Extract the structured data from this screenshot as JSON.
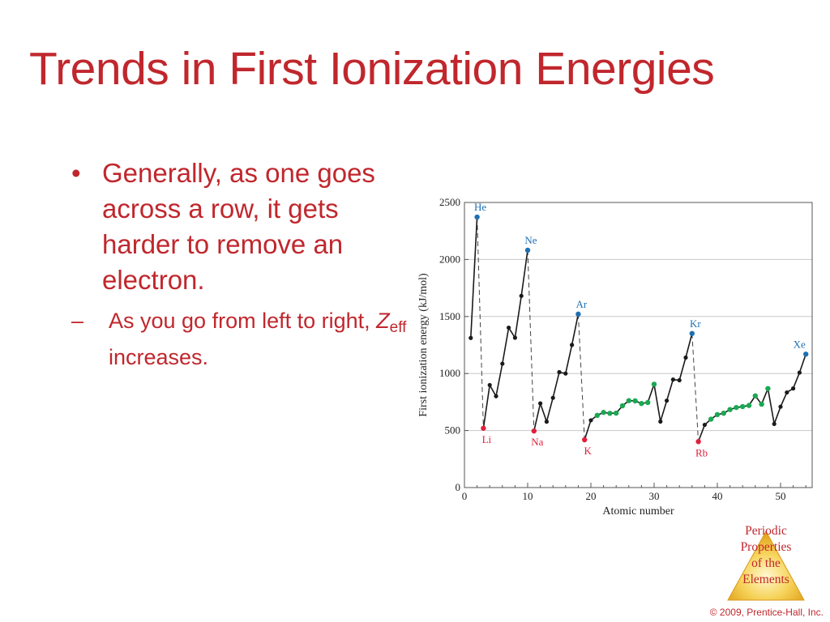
{
  "slide": {
    "title": "Trends in First Ionization Energies",
    "bullet1": "Generally, as one goes across a row, it gets harder to remove an electron.",
    "sub_bullet_prefix": "As you go from left to right, ",
    "sub_bullet_z": "Z",
    "sub_bullet_subscript": "eff",
    "sub_bullet_suffix": " increases.",
    "bullet_marker": "•",
    "sub_marker": "–"
  },
  "chart_data": {
    "type": "line",
    "xlabel": "Atomic number",
    "ylabel": "First ionization energy (kJ/mol)",
    "xlim": [
      0,
      55
    ],
    "ylim": [
      0,
      2500
    ],
    "xticks": [
      0,
      10,
      20,
      30,
      40,
      50
    ],
    "yticks": [
      0,
      500,
      1000,
      1500,
      2000,
      2500
    ],
    "grid": true,
    "series": [
      {
        "x": [
          1,
          2,
          3,
          4,
          5,
          6,
          7,
          8,
          9,
          10,
          11,
          12,
          13,
          14,
          15,
          16,
          17,
          18,
          19,
          20,
          21,
          22,
          23,
          24,
          25,
          26,
          27,
          28,
          29,
          30,
          31,
          32,
          33,
          34,
          35,
          36,
          37,
          38,
          39,
          40,
          41,
          42,
          43,
          44,
          45,
          46,
          47,
          48,
          49,
          50,
          51,
          52,
          53,
          54
        ],
        "values": [
          1312,
          2372,
          520,
          899,
          801,
          1086,
          1402,
          1314,
          1681,
          2081,
          496,
          738,
          578,
          787,
          1012,
          1000,
          1251,
          1521,
          419,
          590,
          633,
          659,
          651,
          653,
          717,
          762,
          760,
          737,
          746,
          906,
          579,
          762,
          947,
          941,
          1140,
          1351,
          403,
          550,
          600,
          640,
          652,
          684,
          702,
          710,
          720,
          804,
          731,
          868,
          558,
          709,
          834,
          869,
          1008,
          1170
        ]
      }
    ],
    "point_colors": {
      "alkali": "#e0203c",
      "noble": "#1f6fb2",
      "transition": "#1aa853",
      "other": "#1a1a1a"
    },
    "alkali_metals": [
      3,
      11,
      19,
      37
    ],
    "noble_gases": [
      2,
      10,
      18,
      36,
      54
    ],
    "transition_metals": [
      21,
      22,
      23,
      24,
      25,
      26,
      27,
      28,
      29,
      30,
      39,
      40,
      41,
      42,
      43,
      44,
      45,
      46,
      47,
      48
    ],
    "annotations": [
      {
        "label": "He",
        "x": 2,
        "group": "noble"
      },
      {
        "label": "Ne",
        "x": 10,
        "group": "noble"
      },
      {
        "label": "Ar",
        "x": 18,
        "group": "noble"
      },
      {
        "label": "Kr",
        "x": 36,
        "group": "noble"
      },
      {
        "label": "Xe",
        "x": 54,
        "group": "noble"
      },
      {
        "label": "Li",
        "x": 3,
        "group": "alkali"
      },
      {
        "label": "Na",
        "x": 11,
        "group": "alkali"
      },
      {
        "label": "K",
        "x": 19,
        "group": "alkali"
      },
      {
        "label": "Rb",
        "x": 37,
        "group": "alkali"
      }
    ]
  },
  "logo": {
    "line1": "Periodic",
    "line2": "Properties",
    "line3": "of the",
    "line4": "Elements"
  },
  "footer": {
    "copyright": "© 2009, Prentice-Hall, Inc."
  },
  "colors": {
    "title": "#c0272d",
    "logo_gold": "#f2c23c"
  }
}
